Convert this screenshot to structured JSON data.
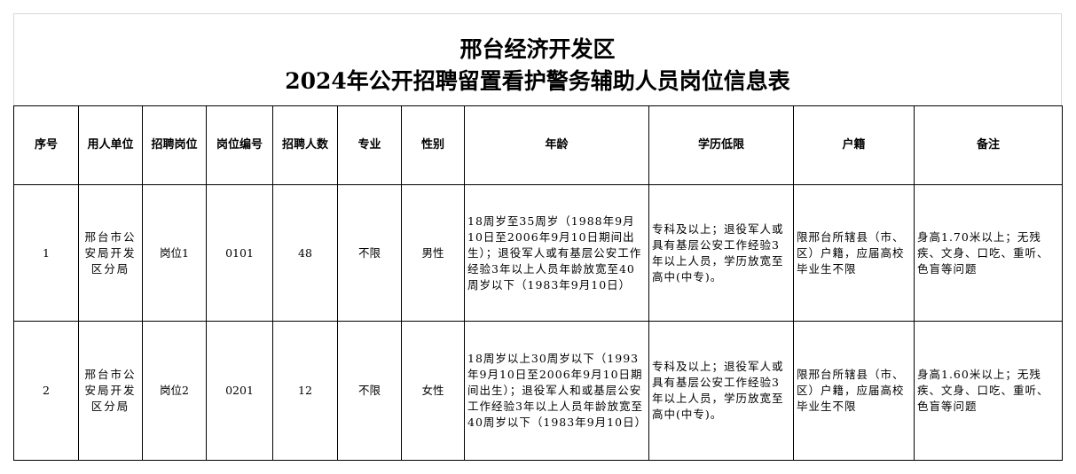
{
  "title": {
    "line1": "邢台经济开发区",
    "line2": "2024年公开招聘留置看护警务辅助人员岗位信息表"
  },
  "table": {
    "headers": [
      "序号",
      "用人单位",
      "招聘岗位",
      "岗位编号",
      "招聘人数",
      "专业",
      "性别",
      "年龄",
      "学历低限",
      "户籍",
      "备注"
    ],
    "rows": [
      [
        "1",
        "邢台市公安局开发区分局",
        "岗位1",
        "0101",
        "48",
        "不限",
        "男性",
        "18周岁至35周岁（1988年9月10日至2006年9月10日期间出生）；退役军人或有基层公安工作经验3年以上人员年龄放宽至40周岁以下（1983年9月10日）",
        "专科及以上；退役军人或具有基层公安工作经验3年以上人员，学历放宽至高中(中专)。",
        "限邢台所辖县（市、区）户籍，应届高校毕业生不限",
        "身高1.70米以上；无残疾、文身、口吃、重听、色盲等问题"
      ],
      [
        "2",
        "邢台市公安局开发区分局",
        "岗位2",
        "0201",
        "12",
        "不限",
        "女性",
        "18周岁以上30周岁以下（1993年9月10日至2006年9月10日期间出生）；退役军人和或基层公安工作经验3年以上人员年龄放宽至40周岁以下（1983年9月10日）",
        "专科及以上；退役军人或具有基层公安工作经验3年以上人员，学历放宽至高中(中专)。",
        "限邢台所辖县（市、区）户籍，应届高校毕业生不限",
        "身高1.60米以上；无残疾、文身、口吃、重听、色盲等问题"
      ]
    ]
  }
}
